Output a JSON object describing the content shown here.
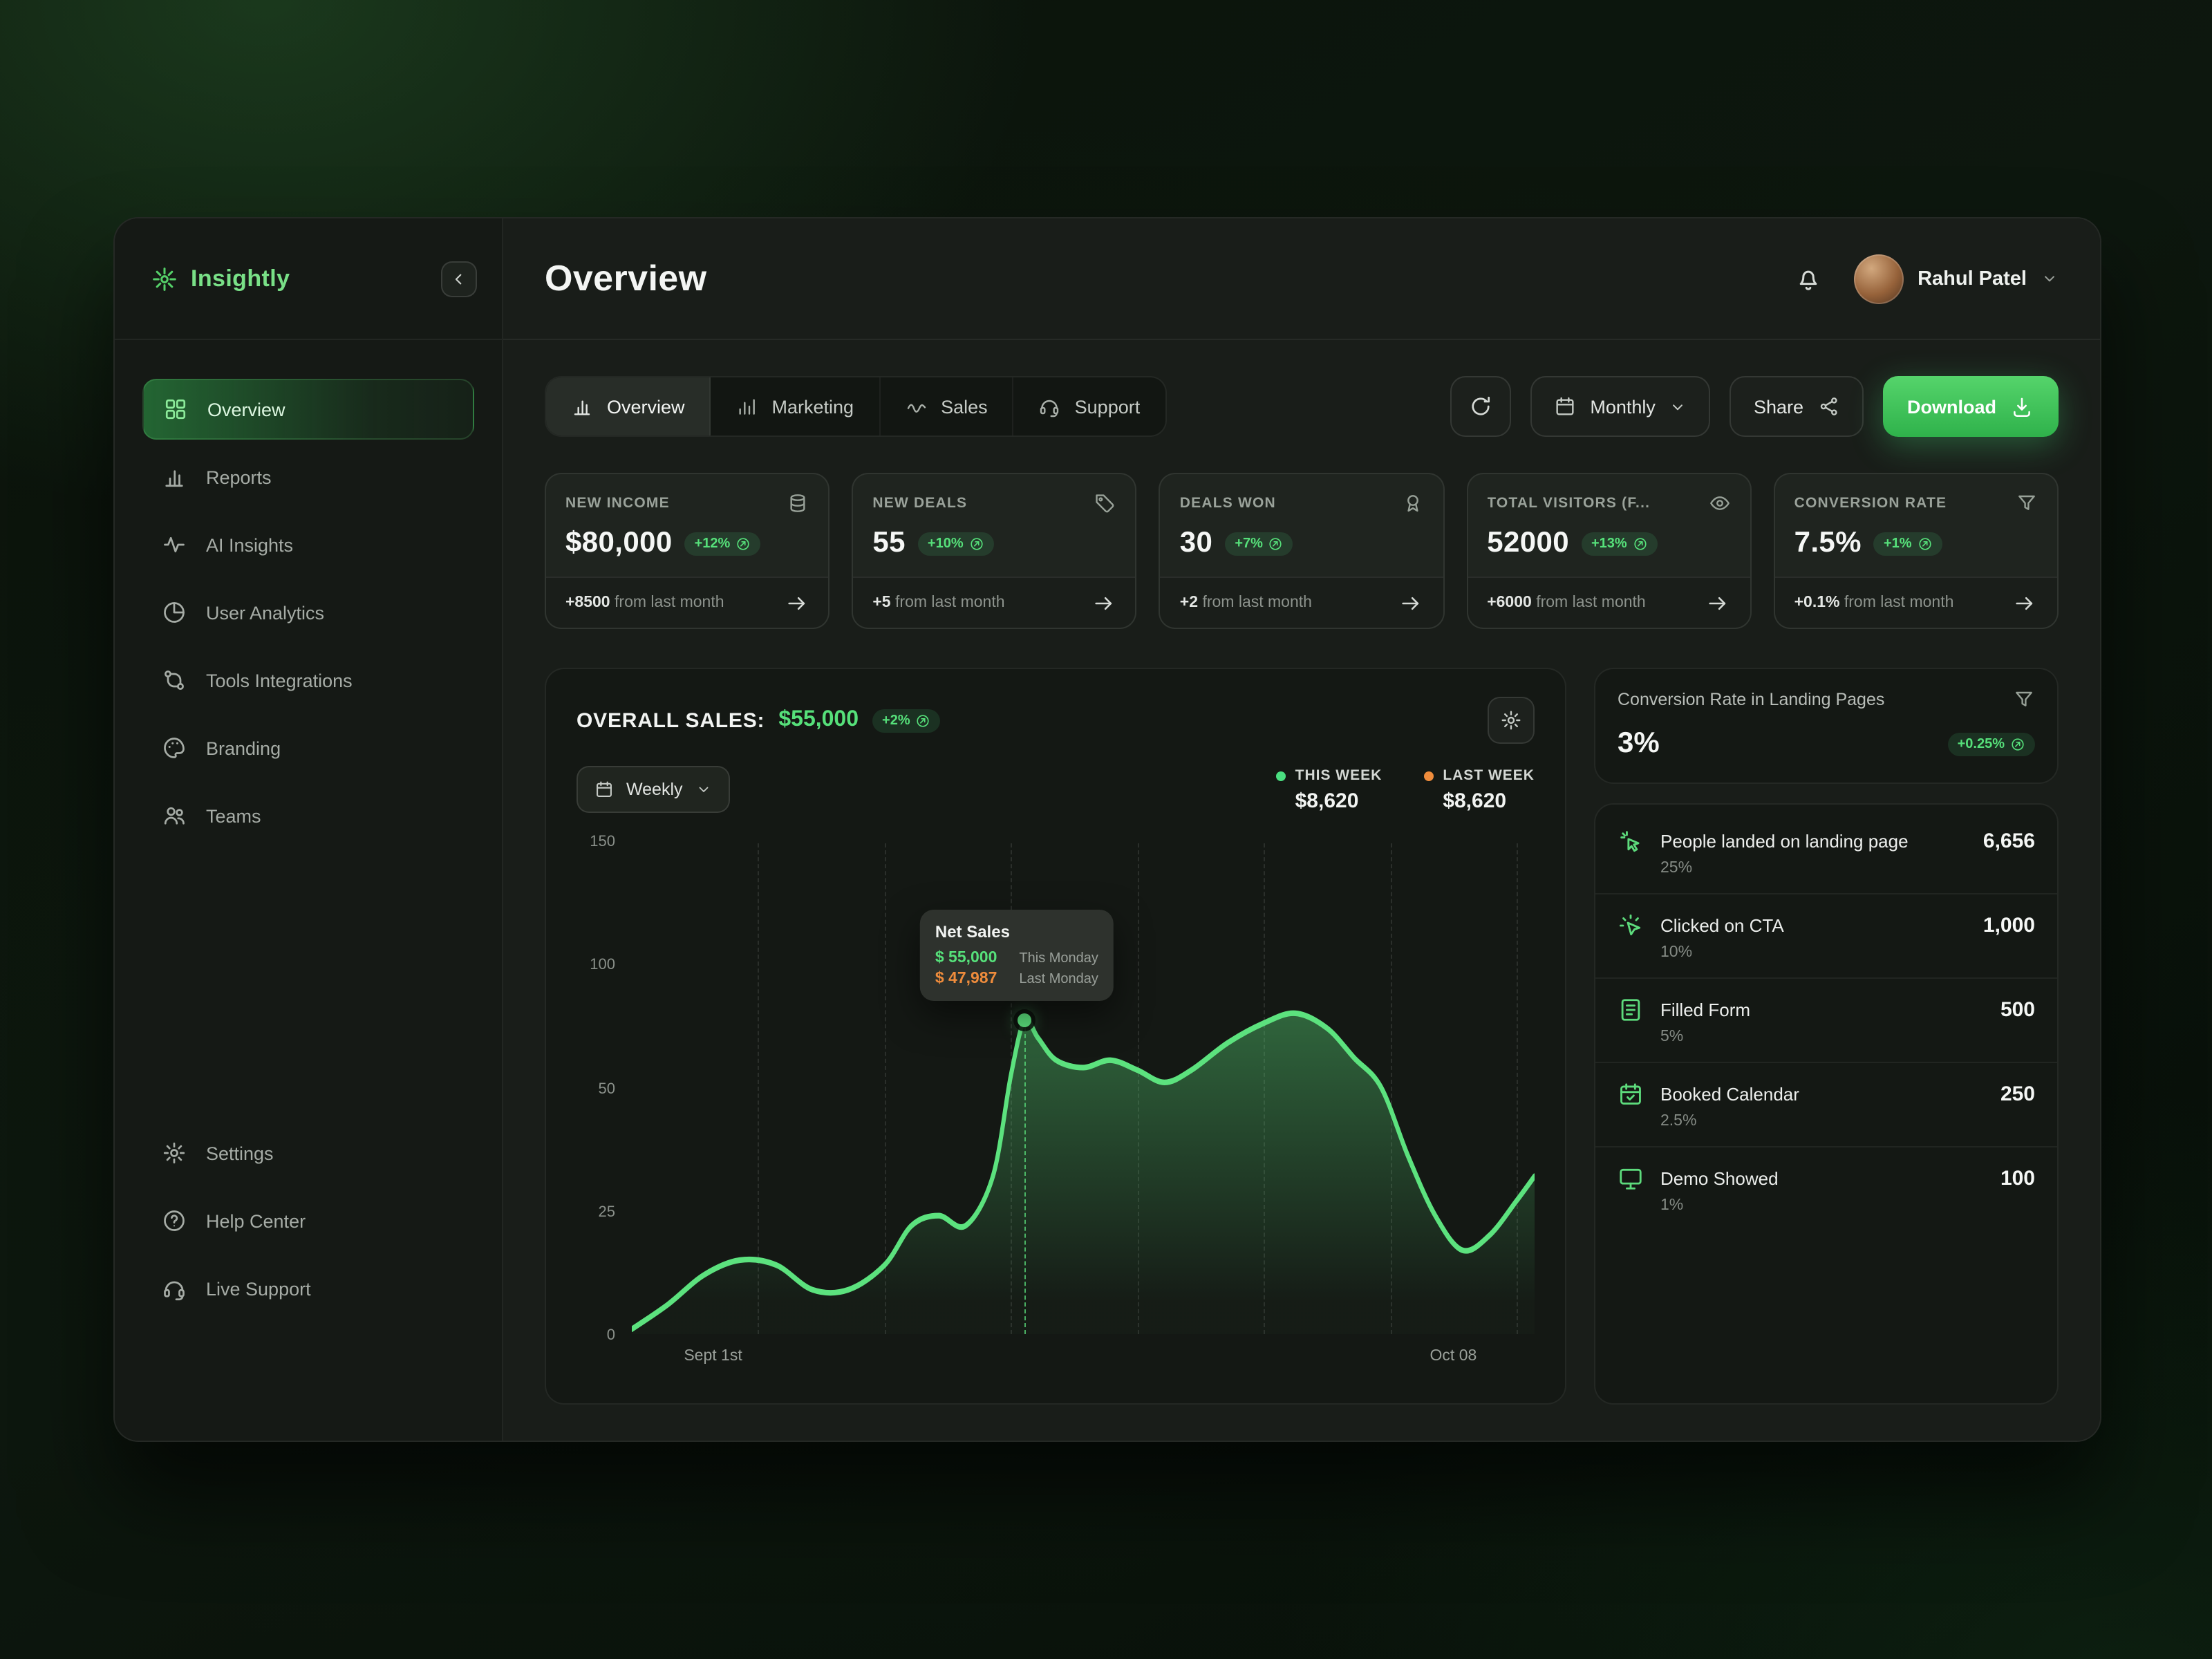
{
  "app": {
    "name": "Insightly"
  },
  "header": {
    "title": "Overview",
    "user_name": "Rahul Patel"
  },
  "sidebar": {
    "items": [
      {
        "label": "Overview",
        "icon": "grid-icon",
        "active": true
      },
      {
        "label": "Reports",
        "icon": "bar-chart-icon"
      },
      {
        "label": "AI Insights",
        "icon": "activity-icon"
      },
      {
        "label": "User Analytics",
        "icon": "pie-chart-icon"
      },
      {
        "label": "Tools Integrations",
        "icon": "integration-icon"
      },
      {
        "label": "Branding",
        "icon": "palette-icon"
      },
      {
        "label": "Teams",
        "icon": "users-icon"
      }
    ],
    "footer_items": [
      {
        "label": "Settings",
        "icon": "gear-icon"
      },
      {
        "label": "Help Center",
        "icon": "help-icon"
      },
      {
        "label": "Live Support",
        "icon": "headset-icon"
      }
    ]
  },
  "toolbar": {
    "tabs": [
      {
        "label": "Overview",
        "icon": "bar-chart-icon",
        "active": true
      },
      {
        "label": "Marketing",
        "icon": "column-chart-icon"
      },
      {
        "label": "Sales",
        "icon": "trend-icon"
      },
      {
        "label": "Support",
        "icon": "headset-icon"
      }
    ],
    "period_label": "Monthly",
    "share_label": "Share",
    "download_label": "Download"
  },
  "stats": [
    {
      "label": "NEW INCOME",
      "icon": "coins-icon",
      "value": "$80,000",
      "badge": "+12%",
      "delta": "+8500",
      "delta_text": "from last month"
    },
    {
      "label": "NEW DEALS",
      "icon": "tag-icon",
      "value": "55",
      "badge": "+10%",
      "delta": "+5",
      "delta_text": "from last month"
    },
    {
      "label": "DEALS WON",
      "icon": "medal-icon",
      "value": "30",
      "badge": "+7%",
      "delta": "+2",
      "delta_text": "from last month"
    },
    {
      "label": "TOTAL VISITORS (F...",
      "icon": "eye-icon",
      "value": "52000",
      "badge": "+13%",
      "delta": "+6000",
      "delta_text": "from last month"
    },
    {
      "label": "CONVERSION RATE",
      "icon": "funnel-icon",
      "value": "7.5%",
      "badge": "+1%",
      "delta": "+0.1%",
      "delta_text": "from last month"
    }
  ],
  "sales": {
    "title": "OVERALL SALES:",
    "value": "$55,000",
    "badge": "+2%",
    "period_label": "Weekly",
    "legend": [
      {
        "label": "THIS WEEK",
        "value": "$8,620",
        "color": "#4ade80"
      },
      {
        "label": "LAST WEEK",
        "value": "$8,620",
        "color": "#ef8c3c"
      }
    ],
    "tooltip": {
      "title": "Net Sales",
      "rows": [
        {
          "value": "$ 55,000",
          "label": "This Monday",
          "color": "#56e07a"
        },
        {
          "value": "$ 47,987",
          "label": "Last Monday",
          "color": "#ef8c3c"
        }
      ]
    }
  },
  "chart_data": {
    "type": "area",
    "title": "Overall Sales - Weekly",
    "ylabel": "",
    "xlabel": "",
    "y_ticks": [
      0,
      25,
      50,
      100,
      150
    ],
    "x_labels": [
      {
        "label": "Sept 1st",
        "pos": 0.09
      },
      {
        "label": "Oct 08",
        "pos": 0.91
      }
    ],
    "gridline_x": [
      0.14,
      0.28,
      0.42,
      0.56,
      0.7,
      0.84,
      0.98
    ],
    "series": [
      {
        "name": "This Week",
        "color": "#5ce27e",
        "points": [
          [
            0,
            1
          ],
          [
            0.04,
            6
          ],
          [
            0.08,
            12
          ],
          [
            0.12,
            15
          ],
          [
            0.16,
            14
          ],
          [
            0.2,
            9
          ],
          [
            0.24,
            9
          ],
          [
            0.28,
            14
          ],
          [
            0.31,
            22
          ],
          [
            0.34,
            24
          ],
          [
            0.37,
            22
          ],
          [
            0.4,
            32
          ],
          [
            0.42,
            55
          ],
          [
            0.435,
            77
          ],
          [
            0.45,
            70
          ],
          [
            0.47,
            61
          ],
          [
            0.5,
            58
          ],
          [
            0.53,
            61
          ],
          [
            0.56,
            57
          ],
          [
            0.59,
            52
          ],
          [
            0.62,
            57
          ],
          [
            0.66,
            68
          ],
          [
            0.7,
            76
          ],
          [
            0.735,
            80
          ],
          [
            0.77,
            74
          ],
          [
            0.8,
            62
          ],
          [
            0.83,
            50
          ],
          [
            0.86,
            36
          ],
          [
            0.89,
            24
          ],
          [
            0.92,
            17
          ],
          [
            0.95,
            20
          ],
          [
            0.98,
            27
          ],
          [
            1,
            32
          ]
        ]
      }
    ],
    "marker": {
      "x": 0.435,
      "value": 77
    }
  },
  "conversion_card": {
    "title": "Conversion Rate in Landing Pages",
    "value": "3%",
    "badge": "+0.25%"
  },
  "funnel": [
    {
      "label": "People landed on landing page",
      "value": "6,656",
      "pct": "25%",
      "icon": "click-icon"
    },
    {
      "label": "Clicked on CTA",
      "value": "1,000",
      "pct": "10%",
      "icon": "cursor-click-icon"
    },
    {
      "label": "Filled Form",
      "value": "500",
      "pct": "5%",
      "icon": "form-icon"
    },
    {
      "label": "Booked Calendar",
      "value": "250",
      "pct": "2.5%",
      "icon": "calendar-check-icon"
    },
    {
      "label": "Demo Showed",
      "value": "100",
      "pct": "1%",
      "icon": "monitor-icon"
    }
  ],
  "colors": {
    "accent": "#4ade80",
    "orange": "#ef8c3c"
  }
}
